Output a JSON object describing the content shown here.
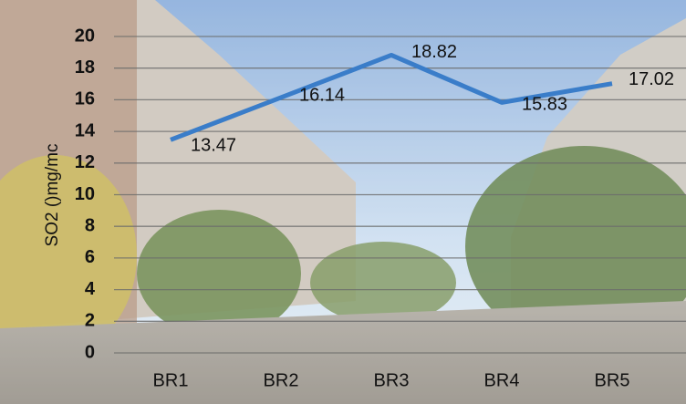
{
  "chart_data": {
    "type": "line",
    "y_label": "SO2 ()mg/mc",
    "categories": [
      "BR1",
      "BR2",
      "BR3",
      "BR4",
      "BR5"
    ],
    "series": [
      {
        "name": "SO2",
        "color": "#3a7dc9",
        "values": [
          13.47,
          16.14,
          18.82,
          15.83,
          17.02
        ]
      }
    ],
    "ylim": [
      0,
      20
    ],
    "yticks": [
      0,
      2,
      4,
      6,
      8,
      10,
      12,
      14,
      16,
      18,
      20
    ],
    "grid": true
  }
}
